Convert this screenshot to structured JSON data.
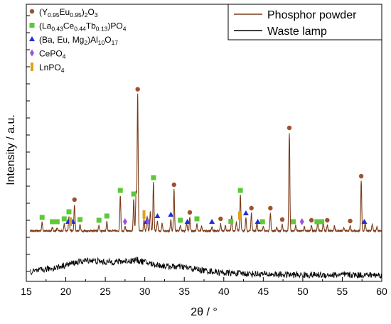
{
  "chart_data": {
    "type": "line",
    "xlabel": "2θ / °",
    "ylabel": "Intensity / a.u.",
    "xlim": [
      15,
      60
    ],
    "x_ticks": [
      "15",
      "20",
      "25",
      "30",
      "35",
      "40",
      "45",
      "50",
      "55",
      "60"
    ],
    "grid": false,
    "legend_position": "top-right",
    "series": [
      {
        "name": "Phosphor powder",
        "color": "#7a3b18",
        "peaks": [
          {
            "x": 17.0,
            "h": 12
          },
          {
            "x": 18.3,
            "h": 5
          },
          {
            "x": 18.9,
            "h": 4
          },
          {
            "x": 19.8,
            "h": 10
          },
          {
            "x": 20.4,
            "h": 20
          },
          {
            "x": 21.1,
            "h": 37
          },
          {
            "x": 21.8,
            "h": 9
          },
          {
            "x": 24.2,
            "h": 8
          },
          {
            "x": 25.2,
            "h": 14
          },
          {
            "x": 26.9,
            "h": 50
          },
          {
            "x": 27.5,
            "h": 6
          },
          {
            "x": 28.6,
            "h": 45
          },
          {
            "x": 28.9,
            "h": 55
          },
          {
            "x": 29.1,
            "h": 192
          },
          {
            "x": 29.9,
            "h": 16
          },
          {
            "x": 30.3,
            "h": 20
          },
          {
            "x": 30.7,
            "h": 28
          },
          {
            "x": 31.1,
            "h": 68
          },
          {
            "x": 31.6,
            "h": 14
          },
          {
            "x": 32.2,
            "h": 11
          },
          {
            "x": 33.3,
            "h": 16
          },
          {
            "x": 33.7,
            "h": 58
          },
          {
            "x": 34.5,
            "h": 8
          },
          {
            "x": 35.3,
            "h": 12
          },
          {
            "x": 35.7,
            "h": 19
          },
          {
            "x": 36.6,
            "h": 10
          },
          {
            "x": 37.2,
            "h": 7
          },
          {
            "x": 38.5,
            "h": 6
          },
          {
            "x": 39.6,
            "h": 10
          },
          {
            "x": 40.2,
            "h": 8
          },
          {
            "x": 41.0,
            "h": 22
          },
          {
            "x": 41.6,
            "h": 12
          },
          {
            "x": 42.1,
            "h": 50
          },
          {
            "x": 42.8,
            "h": 18
          },
          {
            "x": 43.5,
            "h": 25
          },
          {
            "x": 44.2,
            "h": 12
          },
          {
            "x": 45.0,
            "h": 6
          },
          {
            "x": 45.9,
            "h": 25
          },
          {
            "x": 46.7,
            "h": 6
          },
          {
            "x": 47.4,
            "h": 9
          },
          {
            "x": 48.3,
            "h": 138
          },
          {
            "x": 49.1,
            "h": 8
          },
          {
            "x": 50.2,
            "h": 6
          },
          {
            "x": 51.1,
            "h": 8
          },
          {
            "x": 51.9,
            "h": 14
          },
          {
            "x": 52.6,
            "h": 12
          },
          {
            "x": 53.1,
            "h": 8
          },
          {
            "x": 54.0,
            "h": 7
          },
          {
            "x": 55.2,
            "h": 5
          },
          {
            "x": 56.0,
            "h": 7
          },
          {
            "x": 57.4,
            "h": 70
          },
          {
            "x": 57.9,
            "h": 12
          },
          {
            "x": 58.8,
            "h": 10
          },
          {
            "x": 59.4,
            "h": 6
          }
        ]
      },
      {
        "name": "Waste lamp",
        "color": "#000000",
        "profile": [
          {
            "x": 15.5,
            "y": 5
          },
          {
            "x": 17,
            "y": 8
          },
          {
            "x": 19,
            "y": 12
          },
          {
            "x": 21,
            "y": 18
          },
          {
            "x": 23,
            "y": 22
          },
          {
            "x": 25,
            "y": 19
          },
          {
            "x": 27,
            "y": 20
          },
          {
            "x": 29,
            "y": 22
          },
          {
            "x": 31,
            "y": 16
          },
          {
            "x": 33,
            "y": 13
          },
          {
            "x": 35,
            "y": 12
          },
          {
            "x": 37,
            "y": 8
          },
          {
            "x": 40,
            "y": 4
          },
          {
            "x": 45,
            "y": 2
          },
          {
            "x": 50,
            "y": 1
          },
          {
            "x": 55,
            "y": 1
          },
          {
            "x": 59.8,
            "y": 1
          }
        ]
      }
    ],
    "phases": [
      {
        "parts": [
          [
            "(Y",
            ""
          ],
          [
            "0.95",
            "sub"
          ],
          [
            "Eu",
            ""
          ],
          [
            "0.95",
            "sub"
          ],
          [
            ")",
            ""
          ],
          [
            "2",
            "sub"
          ],
          [
            "O",
            ""
          ],
          [
            "3",
            "sub"
          ]
        ],
        "marker": "circle",
        "color": "#a0522d",
        "positions": [
          21.1,
          29.1,
          33.7,
          35.7,
          39.6,
          42.1,
          43.5,
          45.9,
          47.4,
          48.3,
          51.1,
          53.1,
          56.0,
          57.4
        ]
      },
      {
        "parts": [
          [
            "(La",
            ""
          ],
          [
            "0.43",
            "sub"
          ],
          [
            "Ce",
            ""
          ],
          [
            "0.44",
            "sub"
          ],
          [
            "Tb",
            ""
          ],
          [
            "0.13",
            "sub"
          ],
          [
            ")PO",
            ""
          ],
          [
            "4",
            "sub"
          ]
        ],
        "marker": "square",
        "color": "#5dc93a",
        "positions": [
          17.0,
          18.3,
          18.9,
          19.8,
          20.4,
          21.8,
          24.2,
          25.2,
          26.9,
          28.6,
          31.1,
          34.5,
          36.6,
          40.9,
          42.1,
          44.9,
          48.8,
          51.8,
          52.4
        ]
      },
      {
        "parts": [
          [
            "(Ba, Eu, Mg",
            ""
          ],
          [
            "2",
            "sub"
          ],
          [
            ")Al",
            ""
          ],
          [
            "10",
            "sub"
          ],
          [
            "O",
            ""
          ],
          [
            "17",
            "sub"
          ]
        ],
        "marker": "triangle",
        "color": "#1f2fd6",
        "positions": [
          20.3,
          20.9,
          30.2,
          31.6,
          33.3,
          35.4,
          38.5,
          42.8,
          44.3,
          57.8
        ]
      },
      {
        "parts": [
          [
            "CePO",
            ""
          ],
          [
            "4",
            "sub"
          ]
        ],
        "marker": "diamond",
        "color": "#9b4fe0",
        "positions": [
          27.5,
          30.4,
          49.9
        ]
      },
      {
        "parts": [
          [
            "LnPO",
            ""
          ],
          [
            "4",
            "sub"
          ]
        ],
        "marker": "bar",
        "color": "#e0a020",
        "positions": [
          20.6,
          29.9,
          42.0
        ]
      }
    ]
  }
}
